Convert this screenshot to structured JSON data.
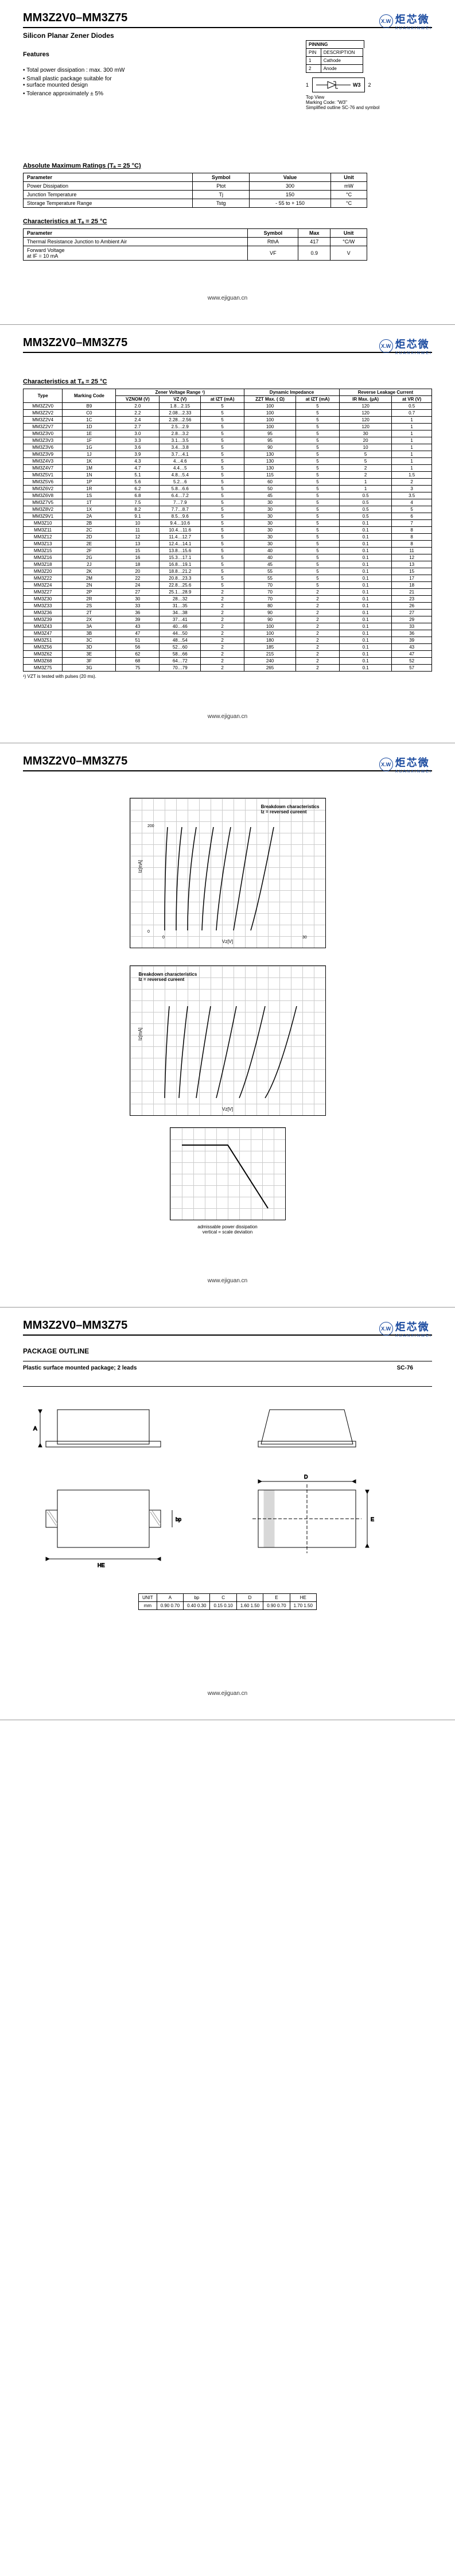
{
  "header": {
    "title": "MM3Z2V0–MM3Z75",
    "subtitle": "Silicon Planar Zener Diodes"
  },
  "logo": {
    "mark": "X.W",
    "cn": "炬芯微",
    "py": "XUANXINWEI"
  },
  "features": {
    "heading": "Features",
    "items": [
      "Total power dissipation : max. 300 mW",
      "Small plastic package suitable for",
      "surface mounted design",
      "Tolerance approximately ± 5%"
    ]
  },
  "pinning": {
    "heading": "PINNING",
    "col1": "PIN",
    "col2": "DESCRIPTION",
    "r1a": "1",
    "r1b": "Cathode",
    "r2a": "2",
    "r2b": "Anode",
    "code": "W3",
    "note1": "Top View",
    "note2": "Marking Code: \"W3\"",
    "note3": "Simplified outline SC-76 and symbol"
  },
  "abs": {
    "heading": "Absolute Maximum Ratings (Tₐ = 25 °C)",
    "h1": "Parameter",
    "h2": "Symbol",
    "h3": "Value",
    "h4": "Unit",
    "r1": [
      "Power Dissipation",
      "Ptot",
      "300",
      "mW"
    ],
    "r2": [
      "Junction Temperature",
      "Tj",
      "150",
      "°C"
    ],
    "r3": [
      "Storage Temperature Range",
      "Tstg",
      "- 55 to + 150",
      "°C"
    ]
  },
  "char1": {
    "heading": "Characteristics at Tₐ = 25 °C",
    "h1": "Parameter",
    "h2": "Symbol",
    "h3": "Max",
    "h4": "Unit",
    "r1": [
      "Thermal Resistance Junction to Ambient Air",
      "RthA",
      "417",
      "°C/W"
    ],
    "r2": [
      "Forward Voltage\nat IF = 10 mA",
      "VF",
      "0.9",
      "V"
    ]
  },
  "char2": {
    "heading": "Characteristics at Tₐ = 25 °C",
    "cols": [
      "Type",
      "Marking Code",
      "Zener Voltage Range ¹)",
      "",
      "",
      "Dynamic Impedance",
      "",
      "Reverse Leakage Current",
      ""
    ],
    "sub": [
      "",
      "",
      "VZNOM (V)",
      "VZ (V)",
      "at IZT (mA)",
      "ZZT Max. ( Ω)",
      "at IZT (mA)",
      "IR Max. (µA)",
      "at VR (V)"
    ],
    "rows": [
      [
        "MM3Z2V0",
        "B9",
        "2.0",
        "1.8…2.15",
        "5",
        "100",
        "5",
        "120",
        "0.5"
      ],
      [
        "MM3Z2V2",
        "C0",
        "2.2",
        "2.08…2.33",
        "5",
        "100",
        "5",
        "120",
        "0.7"
      ],
      [
        "MM3Z2V4",
        "1C",
        "2.4",
        "2.28…2.56",
        "5",
        "100",
        "5",
        "120",
        "1"
      ],
      [
        "MM3Z2V7",
        "1D",
        "2.7",
        "2.5…2.9",
        "5",
        "100",
        "5",
        "120",
        "1"
      ],
      [
        "MM3Z3V0",
        "1E",
        "3.0",
        "2.8…3.2",
        "5",
        "95",
        "5",
        "30",
        "1"
      ],
      [
        "MM3Z3V3",
        "1F",
        "3.3",
        "3.1…3.5",
        "5",
        "95",
        "5",
        "20",
        "1"
      ],
      [
        "MM3Z3V6",
        "1G",
        "3.6",
        "3.4…3.8",
        "5",
        "90",
        "5",
        "10",
        "1"
      ],
      [
        "MM3Z3V9",
        "1J",
        "3.9",
        "3.7…4.1",
        "5",
        "130",
        "5",
        "5",
        "1"
      ],
      [
        "MM3Z4V3",
        "1K",
        "4.3",
        "4…4.6",
        "5",
        "130",
        "5",
        "5",
        "1"
      ],
      [
        "MM3Z4V7",
        "1M",
        "4.7",
        "4.4…5",
        "5",
        "130",
        "5",
        "2",
        "1"
      ],
      [
        "MM3Z5V1",
        "1N",
        "5.1",
        "4.8…5.4",
        "5",
        "115",
        "5",
        "2",
        "1.5"
      ],
      [
        "MM3Z5V6",
        "1P",
        "5.6",
        "5.2…6",
        "5",
        "60",
        "5",
        "1",
        "2"
      ],
      [
        "MM3Z6V2",
        "1R",
        "6.2",
        "5.8…6.6",
        "5",
        "50",
        "5",
        "1",
        "3"
      ],
      [
        "MM3Z6V8",
        "1S",
        "6.8",
        "6.4…7.2",
        "5",
        "45",
        "5",
        "0.5",
        "3.5"
      ],
      [
        "MM3Z7V5",
        "1T",
        "7.5",
        "7…7.9",
        "5",
        "30",
        "5",
        "0.5",
        "4"
      ],
      [
        "MM3Z8V2",
        "1X",
        "8.2",
        "7.7…8.7",
        "5",
        "30",
        "5",
        "0.5",
        "5"
      ],
      [
        "MM3Z9V1",
        "2A",
        "9.1",
        "8.5…9.6",
        "5",
        "30",
        "5",
        "0.5",
        "6"
      ],
      [
        "MM3Z10",
        "2B",
        "10",
        "9.4…10.6",
        "5",
        "30",
        "5",
        "0.1",
        "7"
      ],
      [
        "MM3Z11",
        "2C",
        "11",
        "10.4…11.6",
        "5",
        "30",
        "5",
        "0.1",
        "8"
      ],
      [
        "MM3Z12",
        "2D",
        "12",
        "11.4…12.7",
        "5",
        "30",
        "5",
        "0.1",
        "8"
      ],
      [
        "MM3Z13",
        "2E",
        "13",
        "12.4…14.1",
        "5",
        "30",
        "5",
        "0.1",
        "8"
      ],
      [
        "MM3Z15",
        "2F",
        "15",
        "13.8…15.6",
        "5",
        "40",
        "5",
        "0.1",
        "11"
      ],
      [
        "MM3Z16",
        "2G",
        "16",
        "15.3…17.1",
        "5",
        "40",
        "5",
        "0.1",
        "12"
      ],
      [
        "MM3Z18",
        "2J",
        "18",
        "16.8…19.1",
        "5",
        "45",
        "5",
        "0.1",
        "13"
      ],
      [
        "MM3Z20",
        "2K",
        "20",
        "18.8…21.2",
        "5",
        "55",
        "5",
        "0.1",
        "15"
      ],
      [
        "MM3Z22",
        "2M",
        "22",
        "20.8…23.3",
        "5",
        "55",
        "5",
        "0.1",
        "17"
      ],
      [
        "MM3Z24",
        "2N",
        "24",
        "22.8…25.6",
        "5",
        "70",
        "5",
        "0.1",
        "18"
      ],
      [
        "MM3Z27",
        "2P",
        "27",
        "25.1…28.9",
        "2",
        "70",
        "2",
        "0.1",
        "21"
      ],
      [
        "MM3Z30",
        "2R",
        "30",
        "28…32",
        "2",
        "70",
        "2",
        "0.1",
        "23"
      ],
      [
        "MM3Z33",
        "2S",
        "33",
        "31…35",
        "2",
        "80",
        "2",
        "0.1",
        "26"
      ],
      [
        "MM3Z36",
        "2T",
        "36",
        "34…38",
        "2",
        "90",
        "2",
        "0.1",
        "27"
      ],
      [
        "MM3Z39",
        "2X",
        "39",
        "37…41",
        "2",
        "90",
        "2",
        "0.1",
        "29"
      ],
      [
        "MM3Z43",
        "3A",
        "43",
        "40…46",
        "2",
        "100",
        "2",
        "0.1",
        "33"
      ],
      [
        "MM3Z47",
        "3B",
        "47",
        "44…50",
        "2",
        "100",
        "2",
        "0.1",
        "36"
      ],
      [
        "MM3Z51",
        "3C",
        "51",
        "48…54",
        "2",
        "180",
        "2",
        "0.1",
        "39"
      ],
      [
        "MM3Z56",
        "3D",
        "56",
        "52…60",
        "2",
        "185",
        "2",
        "0.1",
        "43"
      ],
      [
        "MM3Z62",
        "3E",
        "62",
        "58…66",
        "2",
        "215",
        "2",
        "0.1",
        "47"
      ],
      [
        "MM3Z68",
        "3F",
        "68",
        "64…72",
        "2",
        "240",
        "2",
        "0.1",
        "52"
      ],
      [
        "MM3Z75",
        "3G",
        "75",
        "70…79",
        "2",
        "265",
        "2",
        "0.1",
        "57"
      ]
    ],
    "footnote": "¹) VZT is tested with pulses (20 ms)."
  },
  "charts": {
    "c1_title": "Breakdown characteristics\nIz = reversed cureent",
    "c2_title": "Breakdown characteristics\nIz = reversed cureent",
    "c3_title": "admissable power dissipation\nvertical = scale deviation"
  },
  "pkg": {
    "heading": "PACKAGE OUTLINE",
    "sub": "Plastic surface mounted package; 2 leads",
    "code": "SC-76",
    "dimh": [
      "UNIT",
      "A",
      "bp",
      "C",
      "D",
      "E",
      "HE"
    ],
    "dimr1": [
      "mm",
      "0.90 0.70",
      "0.40 0.30",
      "0.15 0.10",
      "1.60 1.50",
      "0.90 0.70",
      "1.70 1.50"
    ]
  },
  "footer": "www.ejiguan.cn"
}
